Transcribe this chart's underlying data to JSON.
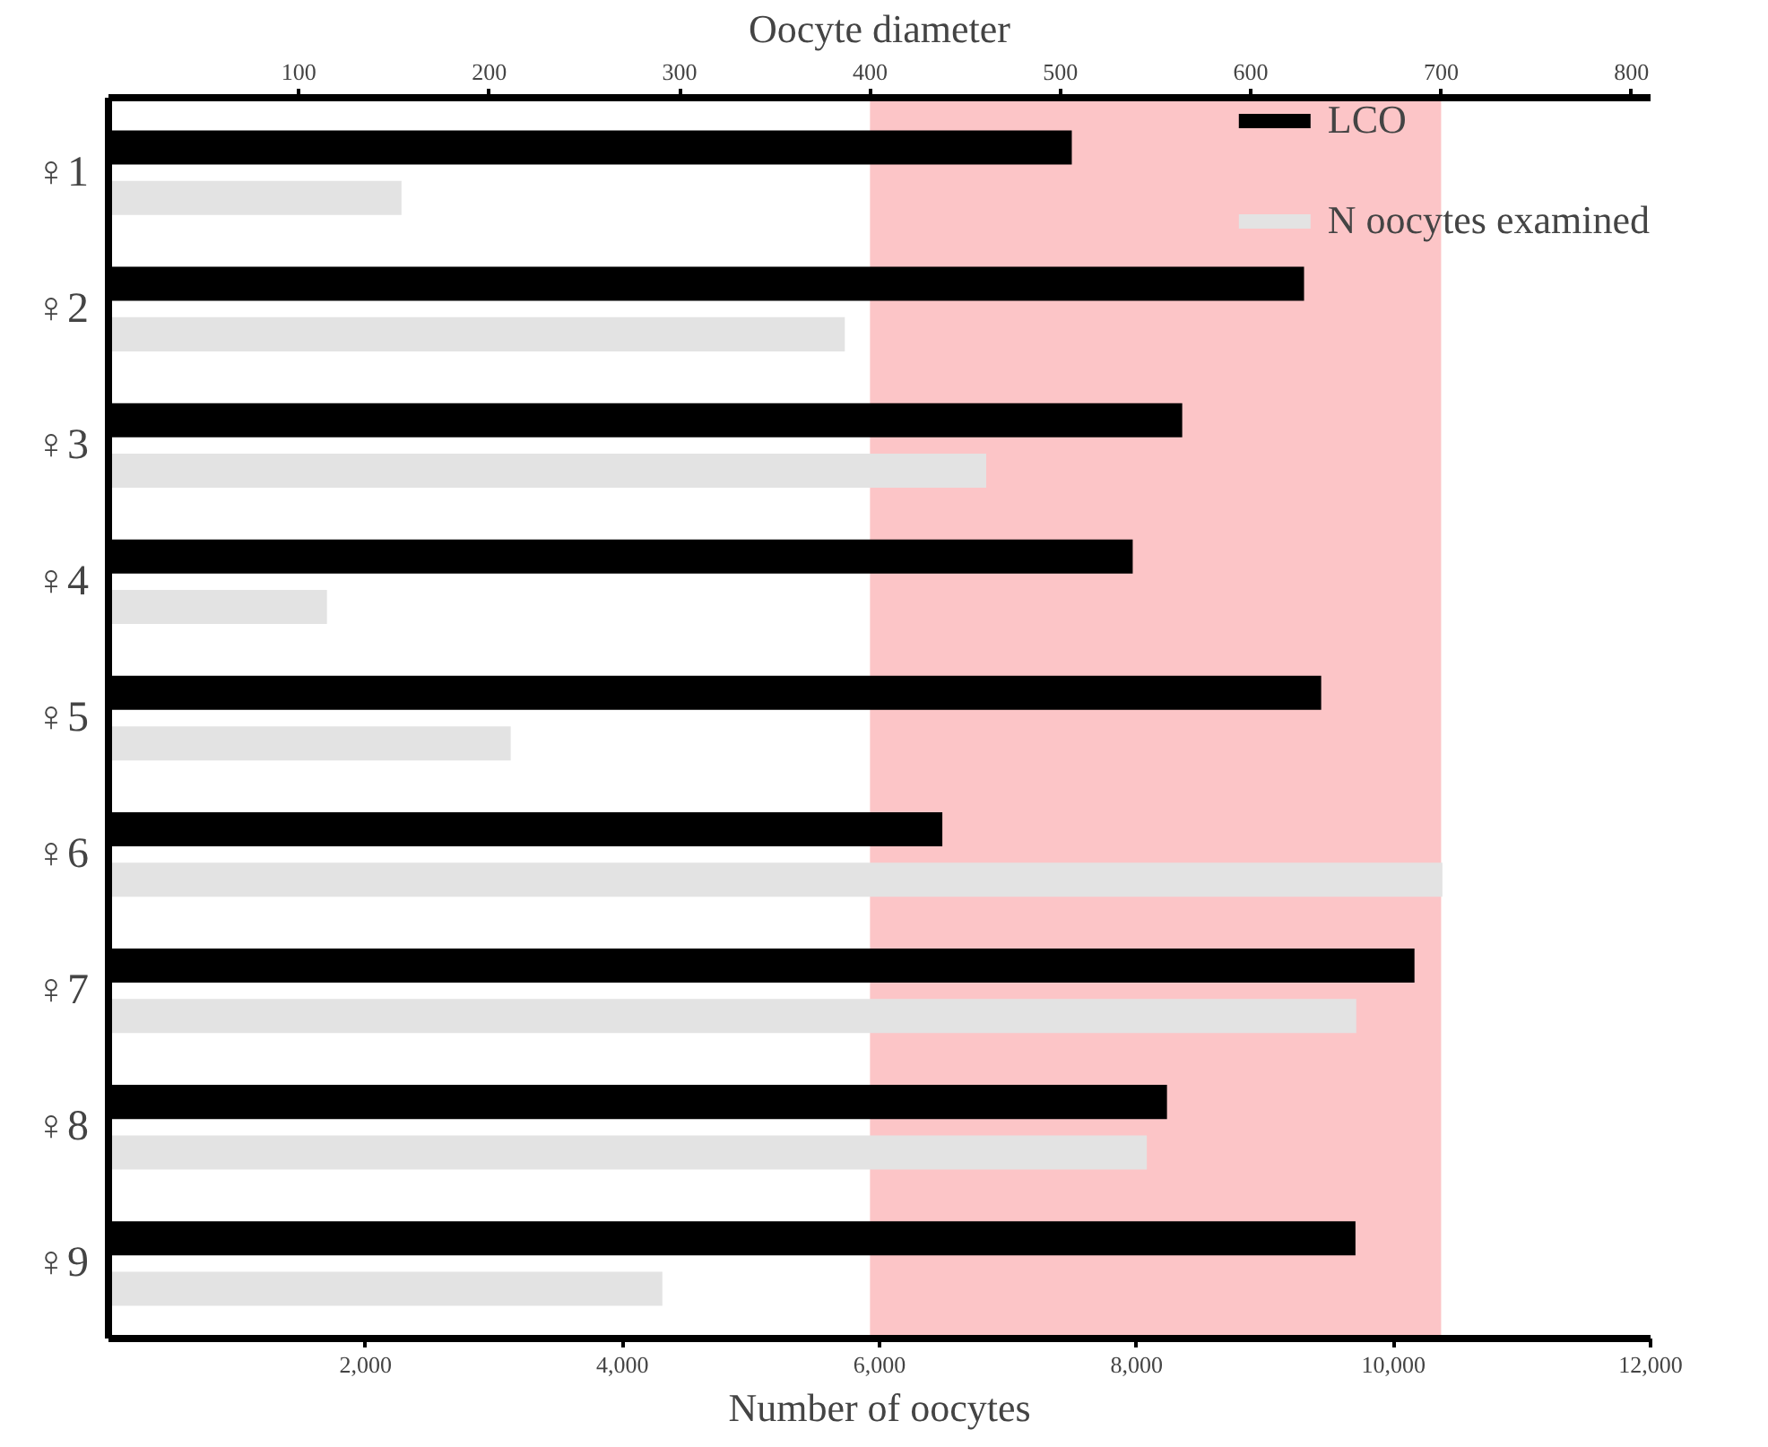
{
  "chart_data": {
    "type": "bar",
    "orientation": "horizontal",
    "xlabel": "Number of oocytes",
    "x2label": "Oocyte diameter",
    "categories": [
      "♀1",
      "♀2",
      "♀3",
      "♀4",
      "♀5",
      "♀6",
      "♀7",
      "♀8",
      "♀9"
    ],
    "series": [
      {
        "name": "LCO",
        "color": "#000000",
        "axis": "x2",
        "values": [
          506,
          628,
          564,
          538,
          637,
          438,
          686,
          556,
          655
        ]
      },
      {
        "name": "N oocytes examined",
        "color": "#e3e3e3",
        "values": [
          2280,
          5730,
          6830,
          1700,
          3130,
          10380,
          9710,
          8080,
          4310
        ]
      }
    ],
    "xlim": [
      0,
      12000
    ],
    "xticks": [
      {
        "value": 2000,
        "label": "2,000"
      },
      {
        "value": 4000,
        "label": "4,000"
      },
      {
        "value": 6000,
        "label": "6,000"
      },
      {
        "value": 8000,
        "label": "8,000"
      },
      {
        "value": 10000,
        "label": "10,000"
      },
      {
        "value": 12000,
        "label": "12,000"
      }
    ],
    "x2lim": [
      0,
      810
    ],
    "x2ticks": [
      100,
      200,
      300,
      400,
      500,
      600,
      700,
      800
    ],
    "bands": [
      {
        "axis": "x2",
        "from": 400,
        "to": 700,
        "color": "#fcc5c7"
      }
    ],
    "legend": "top right",
    "grid": false
  }
}
